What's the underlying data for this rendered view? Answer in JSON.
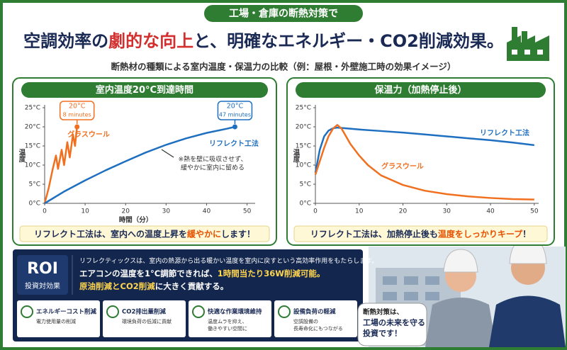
{
  "header": {
    "banner": "工場・倉庫の断熱対策で",
    "title": [
      {
        "text": "空調効率の"
      },
      {
        "text": "劇的な向上",
        "highlight": true
      },
      {
        "text": "と、明確なエネルギー・CO2削減効果。"
      }
    ],
    "subtitle": "断熱材の種類による室内温度・保温力の比較（例：屋根・外壁施工時の効果イメージ）"
  },
  "chart_data": [
    {
      "type": "line",
      "title": "室内温度20°C到達時間",
      "x_label": "時間（分）",
      "y_label": "温度",
      "xlim": [
        0,
        52
      ],
      "ylim": [
        0,
        25
      ],
      "xticks": [
        0,
        10,
        20,
        30,
        40,
        50
      ],
      "yticks": [
        {
          "value": 0,
          "label": "0°C"
        },
        {
          "value": 5,
          "label": "5°C"
        },
        {
          "value": 10,
          "label": "10°C"
        },
        {
          "value": 15,
          "label": "15°C"
        },
        {
          "value": 20,
          "label": "20°C"
        },
        {
          "value": 25,
          "label": "25°C"
        }
      ],
      "grid": false,
      "series": [
        {
          "name": "グラスウール",
          "color": "#f07020",
          "callout": [
            "20°C",
            "8 minutes"
          ],
          "x": [
            0,
            1,
            2,
            2.8,
            3.3,
            4.2,
            4.8,
            5.6,
            6.2,
            7,
            7.5,
            8
          ],
          "values": [
            0,
            4,
            9,
            12.5,
            9,
            14,
            10,
            16,
            12,
            18,
            15,
            20
          ]
        },
        {
          "name": "リフレクト工法",
          "color": "#1f6fc0",
          "callout": [
            "20°C",
            "47 minutes"
          ],
          "x": [
            0,
            5,
            10,
            15,
            20,
            25,
            30,
            35,
            40,
            45,
            47
          ],
          "values": [
            0,
            3.2,
            6,
            8.6,
            11,
            13.3,
            15.3,
            17,
            18.4,
            19.5,
            20
          ]
        }
      ],
      "note": [
        "※熱を壁に吸収させず、",
        "緩やかに室内に留める"
      ],
      "caption": [
        {
          "text": "リフレクト工法は、室内への温度上昇を"
        },
        {
          "text": "緩やかに",
          "highlight": true
        },
        {
          "text": "します！"
        }
      ]
    },
    {
      "type": "line",
      "title": "保温力（加熱停止後）",
      "y_label": "温度",
      "xlim": [
        0,
        51
      ],
      "ylim": [
        0,
        25
      ],
      "xticks": [
        0,
        10,
        20,
        30,
        40,
        50
      ],
      "yticks": [
        {
          "value": 0,
          "label": "0°C"
        },
        {
          "value": 5,
          "label": "5°C"
        },
        {
          "value": 10,
          "label": "10°C"
        },
        {
          "value": 15,
          "label": "15°C"
        },
        {
          "value": 20,
          "label": "20°C"
        },
        {
          "value": 25,
          "label": "25°C"
        }
      ],
      "grid": false,
      "series": [
        {
          "name": "リフレクト工法",
          "color": "#1f6fc0",
          "x": [
            0,
            1,
            2,
            3,
            4,
            5,
            7,
            10,
            15,
            20,
            25,
            30,
            35,
            40,
            45,
            50
          ],
          "values": [
            8,
            14,
            17.5,
            19,
            19.6,
            19.8,
            19.6,
            19.3,
            18.9,
            18.5,
            18,
            17.5,
            17,
            16.5,
            15.9,
            15.2
          ]
        },
        {
          "name": "グラスウール",
          "color": "#f07020",
          "x": [
            0,
            1,
            2,
            3,
            4,
            5,
            6,
            7,
            8,
            10,
            12,
            15,
            20,
            25,
            30,
            35,
            40,
            45,
            50
          ],
          "values": [
            7.5,
            11,
            14.5,
            17.5,
            19.5,
            20.5,
            19.5,
            17.5,
            15.5,
            12.5,
            10,
            7.3,
            4.8,
            3.3,
            2.4,
            1.8,
            1.4,
            1.1,
            1
          ]
        }
      ],
      "caption": [
        {
          "text": "リフレクト工法は、加熱停止後も"
        },
        {
          "text": "温度をしっかりキープ",
          "highlight": true
        },
        {
          "text": "！"
        }
      ]
    }
  ],
  "roi": {
    "title": "ROI",
    "subtitle": "投資対効果",
    "lines": [
      [
        {
          "text": "リフレクティックスは、室内の熱源から出る暖かい温度を室内に戻すという高効率作用をもたらします。"
        }
      ],
      [
        {
          "text": "エアコンの温度を1°C調節できれば、"
        },
        {
          "text": "1時間当たり36W削減可能。",
          "highlight": true
        }
      ],
      [
        {
          "text": "原油削減とCO2削減",
          "highlight": true
        },
        {
          "text": "に大きく貢献する。"
        }
      ]
    ],
    "benefits": [
      {
        "title": "エネルギーコスト削減",
        "desc": [
          "電力使用量の削減"
        ]
      },
      {
        "title": "CO2排出量削減",
        "desc": [
          "環境負荷の低減に貢献"
        ]
      },
      {
        "title": "快適な作業環境維持",
        "desc": [
          "温度ムラを抑え、",
          "働きやすい空間に"
        ]
      },
      {
        "title": "設備負荷の軽減",
        "desc": [
          "空調設備の",
          "長寿命化にもつながる"
        ]
      }
    ]
  },
  "bubble": [
    "断熱対策は、",
    "工場の未来を守る",
    "投資です！"
  ]
}
